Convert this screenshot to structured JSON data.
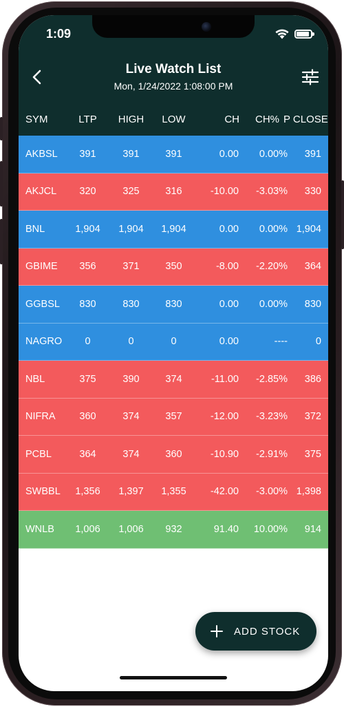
{
  "status_bar": {
    "time": "1:09"
  },
  "header": {
    "title": "Live Watch List",
    "subtitle": "Mon, 1/24/2022 1:08:00 PM",
    "back_icon": "chevron-left-icon",
    "filter_icon": "sliders-icon"
  },
  "columns": [
    "SYM",
    "LTP",
    "HIGH",
    "LOW",
    "CH",
    "CH%",
    "P CLOSE"
  ],
  "colors": {
    "header_bg": "#0f2e2d",
    "up": "#6fbf73",
    "down": "#f35a5c",
    "flat": "#2f8fdf"
  },
  "rows": [
    {
      "sym": "AKBSL",
      "ltp": "391",
      "high": "391",
      "low": "391",
      "ch": "0.00",
      "chp": "0.00%",
      "pclose": "391",
      "trend": "flat"
    },
    {
      "sym": "AKJCL",
      "ltp": "320",
      "high": "325",
      "low": "316",
      "ch": "-10.00",
      "chp": "-3.03%",
      "pclose": "330",
      "trend": "down"
    },
    {
      "sym": "BNL",
      "ltp": "1,904",
      "high": "1,904",
      "low": "1,904",
      "ch": "0.00",
      "chp": "0.00%",
      "pclose": "1,904",
      "trend": "flat"
    },
    {
      "sym": "GBIME",
      "ltp": "356",
      "high": "371",
      "low": "350",
      "ch": "-8.00",
      "chp": "-2.20%",
      "pclose": "364",
      "trend": "down"
    },
    {
      "sym": "GGBSL",
      "ltp": "830",
      "high": "830",
      "low": "830",
      "ch": "0.00",
      "chp": "0.00%",
      "pclose": "830",
      "trend": "flat"
    },
    {
      "sym": "NAGRO",
      "ltp": "0",
      "high": "0",
      "low": "0",
      "ch": "0.00",
      "chp": "----",
      "pclose": "0",
      "trend": "flat"
    },
    {
      "sym": "NBL",
      "ltp": "375",
      "high": "390",
      "low": "374",
      "ch": "-11.00",
      "chp": "-2.85%",
      "pclose": "386",
      "trend": "down"
    },
    {
      "sym": "NIFRA",
      "ltp": "360",
      "high": "374",
      "low": "357",
      "ch": "-12.00",
      "chp": "-3.23%",
      "pclose": "372",
      "trend": "down"
    },
    {
      "sym": "PCBL",
      "ltp": "364",
      "high": "374",
      "low": "360",
      "ch": "-10.90",
      "chp": "-2.91%",
      "pclose": "375",
      "trend": "down"
    },
    {
      "sym": "SWBBL",
      "ltp": "1,356",
      "high": "1,397",
      "low": "1,355",
      "ch": "-42.00",
      "chp": "-3.00%",
      "pclose": "1,398",
      "trend": "down"
    },
    {
      "sym": "WNLB",
      "ltp": "1,006",
      "high": "1,006",
      "low": "932",
      "ch": "91.40",
      "chp": "10.00%",
      "pclose": "914",
      "trend": "up"
    }
  ],
  "fab": {
    "label": "ADD STOCK",
    "icon": "plus-icon"
  }
}
